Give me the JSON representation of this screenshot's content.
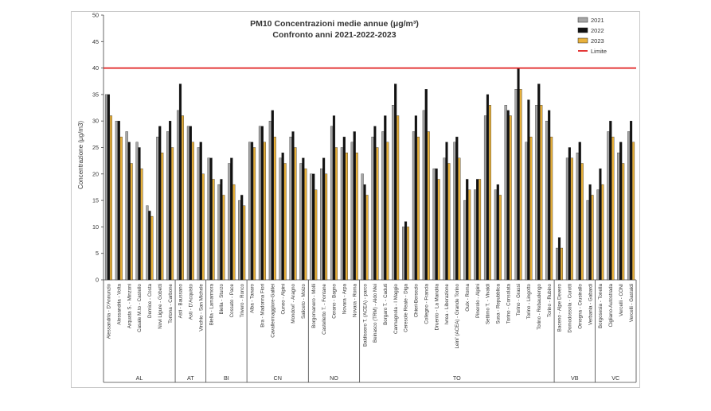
{
  "chart_data": {
    "type": "bar",
    "title": "PM10 Concentrazioni medie annue (μg/m³)",
    "subtitle": "Confronto anni 2021-2022-2023",
    "ylabel": "Concentrazione (µg/m3)",
    "ylim": [
      0,
      50
    ],
    "yticks": [
      0,
      5,
      10,
      15,
      20,
      25,
      30,
      35,
      40,
      45,
      50
    ],
    "grid": false,
    "legend_position": "top-right",
    "limit": {
      "name": "Limite",
      "value": 40,
      "color": "#e02020"
    },
    "series": [
      {
        "name": "2021",
        "color": "#a6a6a6"
      },
      {
        "name": "2022",
        "color": "#111111"
      },
      {
        "name": "2023",
        "color": "#e8b13c"
      }
    ],
    "groups": [
      {
        "name": "AL",
        "stations": [
          {
            "label": "Alessandria - D'Annunzio",
            "values": [
              35,
              35,
              31
            ]
          },
          {
            "label": "Alessandria - Volta",
            "values": [
              30,
              30,
              27
            ]
          },
          {
            "label": "Arquata S. - Minzoni",
            "values": [
              28,
              26,
              22
            ]
          },
          {
            "label": "Casale M.to - Castello",
            "values": [
              26,
              25,
              21
            ]
          },
          {
            "label": "Dernice - Costa",
            "values": [
              14,
              13,
              12
            ]
          },
          {
            "label": "Novi Ligure - Gobetti",
            "values": [
              27,
              29,
              24
            ]
          },
          {
            "label": "Tortona - Carbone",
            "values": [
              28,
              30,
              25
            ]
          }
        ]
      },
      {
        "name": "AT",
        "stations": [
          {
            "label": "Asti - Baussano",
            "values": [
              32,
              37,
              31
            ]
          },
          {
            "label": "Asti - D'Acquisto",
            "values": [
              29,
              29,
              26
            ]
          },
          {
            "label": "Vinchio - San Michele",
            "values": [
              25,
              26,
              20
            ]
          }
        ]
      },
      {
        "name": "BI",
        "stations": [
          {
            "label": "Biella - Lamarmora",
            "values": [
              23,
              23,
              19
            ]
          },
          {
            "label": "Biella - Sturzo",
            "values": [
              18,
              19,
              16
            ]
          },
          {
            "label": "Cossato - Pace",
            "values": [
              22,
              23,
              18
            ]
          },
          {
            "label": "Trivero - Ronco",
            "values": [
              15,
              16,
              14
            ]
          }
        ]
      },
      {
        "name": "CN",
        "stations": [
          {
            "label": "Alba - Tanaro",
            "values": [
              26,
              26,
              25
            ]
          },
          {
            "label": "Bra - Madonna Fiori",
            "values": [
              29,
              29,
              26
            ]
          },
          {
            "label": "Cavallermaggiore-Galilei",
            "values": [
              30,
              32,
              27
            ]
          },
          {
            "label": "Cuneo - Alpini",
            "values": [
              23,
              24,
              22
            ]
          },
          {
            "label": "Mondovi' - Aragno",
            "values": [
              27,
              28,
              25
            ]
          },
          {
            "label": "Saliceto - Moizo",
            "values": [
              22,
              23,
              21
            ]
          }
        ]
      },
      {
        "name": "NO",
        "stations": [
          {
            "label": "Borgomanero - Molli",
            "values": [
              20,
              20,
              17
            ]
          },
          {
            "label": "Castelletto T. - Fontane",
            "values": [
              21,
              23,
              20
            ]
          },
          {
            "label": "Cerano - Bagno",
            "values": [
              29,
              31,
              25
            ]
          },
          {
            "label": "Novara - Arpa",
            "values": [
              25,
              27,
              24
            ]
          },
          {
            "label": "Novara - Roma",
            "values": [
              26,
              28,
              24
            ]
          }
        ]
      },
      {
        "name": "TO",
        "stations": [
          {
            "label": "Baldissero T. (ACEA) - parco",
            "values": [
              20,
              18,
              16
            ]
          },
          {
            "label": "Beinasco (TRM) - Aldo Mei",
            "values": [
              27,
              29,
              25
            ]
          },
          {
            "label": "Borgaro T. - Caduti",
            "values": [
              28,
              31,
              26
            ]
          },
          {
            "label": "Carmagnola - I Maggio",
            "values": [
              33,
              37,
              31
            ]
          },
          {
            "label": "Ceresole Reale - Diga",
            "values": [
              10,
              11,
              10
            ]
          },
          {
            "label": "Chieri-Bersezio",
            "values": [
              28,
              31,
              27
            ]
          },
          {
            "label": "Collegno - Francia",
            "values": [
              32,
              36,
              28
            ]
          },
          {
            "label": "Druento - La Mandria",
            "values": [
              21,
              21,
              19
            ]
          },
          {
            "label": "Ivrea - Liberazione",
            "values": [
              23,
              26,
              22
            ]
          },
          {
            "label": "Leini' (ACEA) - Grande Torino",
            "values": [
              26,
              27,
              23
            ]
          },
          {
            "label": "Oulx - Roma",
            "values": [
              15,
              19,
              17
            ]
          },
          {
            "label": "Pinerolo - Alpini",
            "values": [
              17,
              19,
              19
            ]
          },
          {
            "label": "Settimo T. - Vivaldi",
            "values": [
              31,
              35,
              33
            ]
          },
          {
            "label": "Susa - Repubblica",
            "values": [
              17,
              18,
              16
            ]
          },
          {
            "label": "Torino - Consolata",
            "values": [
              33,
              32,
              31
            ]
          },
          {
            "label": "Torino - Grassi",
            "values": [
              36,
              40,
              36
            ]
          },
          {
            "label": "Torino - Lingotto",
            "values": [
              26,
              34,
              27
            ]
          },
          {
            "label": "Torino - Rebaudengo",
            "values": [
              33,
              37,
              33
            ]
          },
          {
            "label": "Torino - Rubino",
            "values": [
              30,
              32,
              27
            ]
          }
        ]
      },
      {
        "name": "VB",
        "stations": [
          {
            "label": "Baceno - Alpe Devero",
            "values": [
              6,
              8,
              6
            ]
          },
          {
            "label": "Domodossola - Curotti",
            "values": [
              23,
              25,
              23
            ]
          },
          {
            "label": "Omegna - Crusinallo",
            "values": [
              24,
              26,
              22
            ]
          },
          {
            "label": "Verbania - Gabardi",
            "values": [
              15,
              18,
              16
            ]
          }
        ]
      },
      {
        "name": "VC",
        "stations": [
          {
            "label": "Borgosesia - Tonella",
            "values": [
              17,
              21,
              18
            ]
          },
          {
            "label": "Cigliano-Autostrada",
            "values": [
              28,
              30,
              27
            ]
          },
          {
            "label": "Vercelli - CONI",
            "values": [
              24,
              26,
              22
            ]
          },
          {
            "label": "Vercelli - Gastaldi",
            "values": [
              28,
              30,
              26
            ]
          }
        ]
      }
    ]
  }
}
